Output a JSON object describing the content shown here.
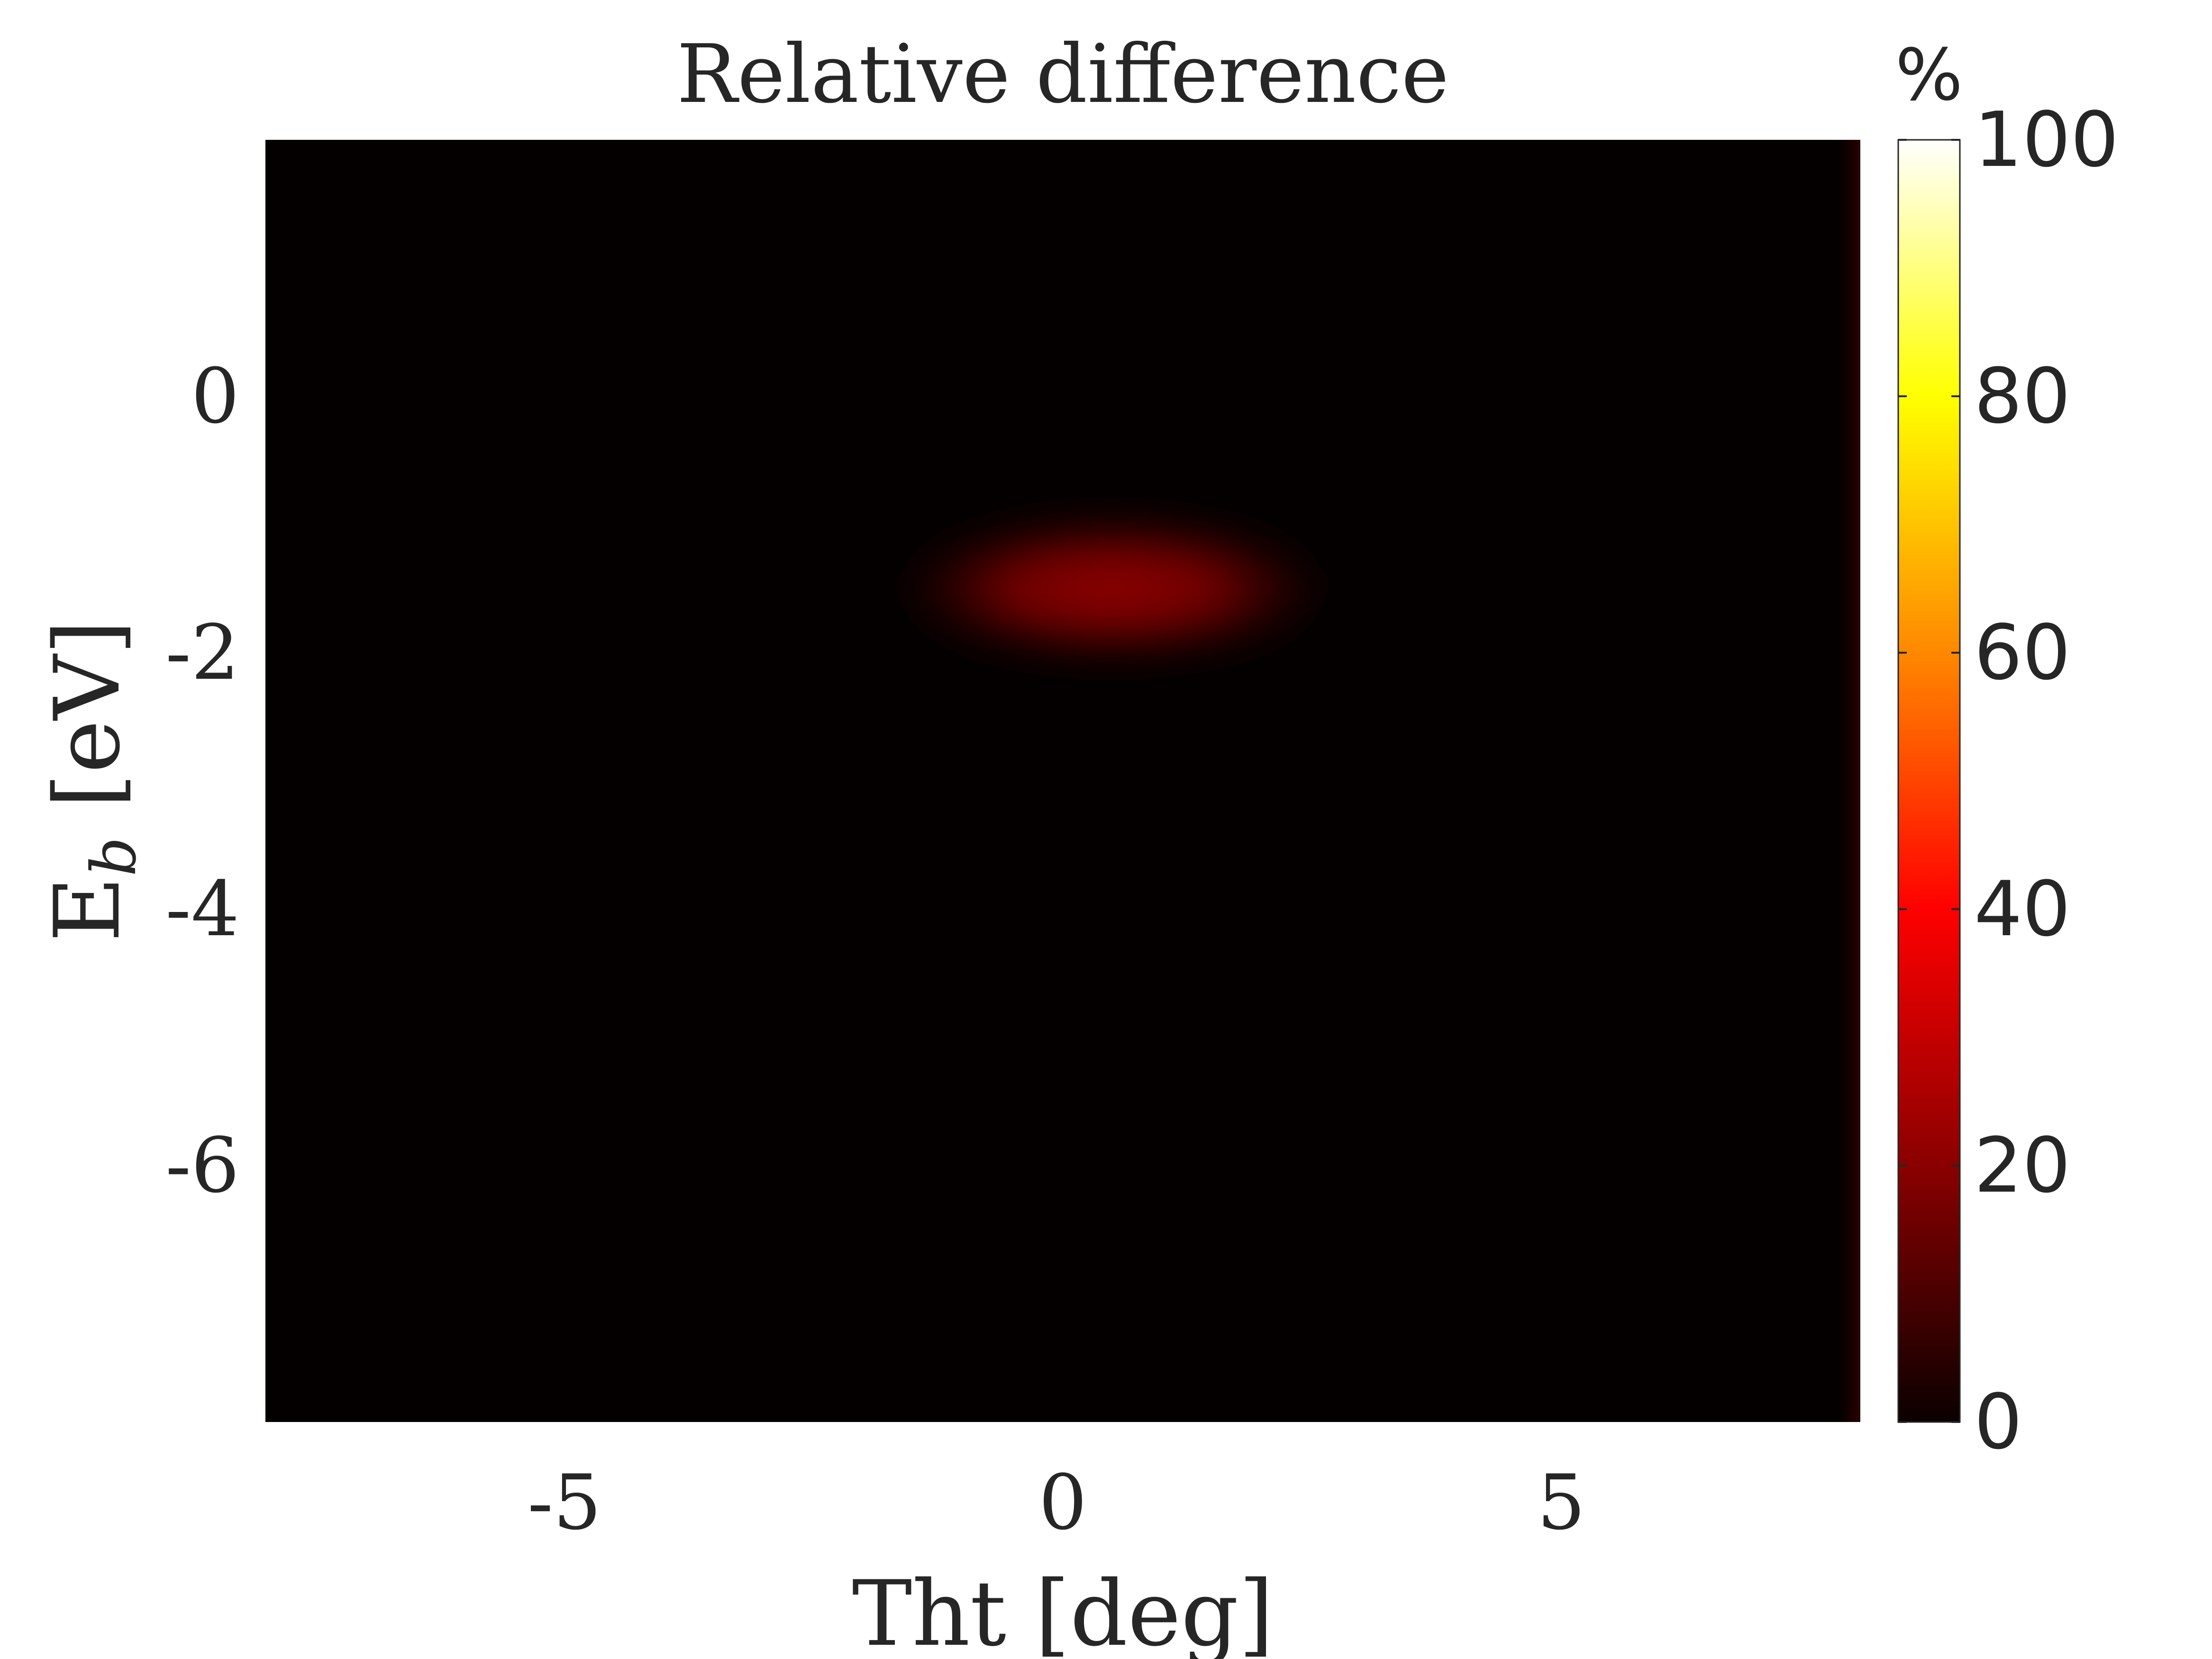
{
  "chart_data": {
    "type": "heatmap",
    "title": "Relative difference",
    "xlabel": "Tht [deg]",
    "ylabel_main": "E",
    "ylabel_sub": "b",
    "ylabel_rest": " [eV]",
    "xlim": [
      -8,
      8
    ],
    "ylim": [
      -8,
      2
    ],
    "xticks": [
      -5,
      0,
      5
    ],
    "yticks": [
      -6,
      -4,
      -2,
      0
    ],
    "grid": false,
    "colormap": "hot",
    "colorbar": {
      "label": "%",
      "limits": [
        0,
        100
      ],
      "ticks": [
        0,
        20,
        40,
        60,
        80,
        100
      ]
    },
    "features": [
      {
        "description": "peak region",
        "x_center": 0.5,
        "y_center": -1.5,
        "x_halfwidth": 2.3,
        "y_halfwidth": 0.6,
        "peak_value": 27
      }
    ],
    "background_value": 1
  },
  "colors": {
    "axis": "#262626",
    "background": "#ffffff",
    "heatmap_background": "#050000"
  }
}
